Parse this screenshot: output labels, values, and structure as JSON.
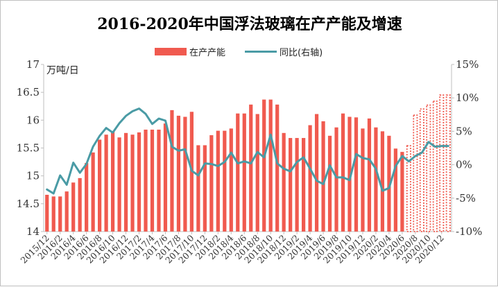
{
  "chart_data": {
    "type": "bar",
    "title": "2016-2020年中国浮法玻璃在产产能及增速",
    "y_unit_label": "万吨/日",
    "ylim": [
      14,
      17
    ],
    "yticks": [
      "14",
      "14.5",
      "15",
      "15.5",
      "16",
      "16.5",
      "17"
    ],
    "y2lim": [
      -10,
      15
    ],
    "y2ticks": [
      "-10%",
      "-5%",
      "0%",
      "5%",
      "10%",
      "15%"
    ],
    "legend_placement": "top-center",
    "x_tick_labels": [
      "2015/12",
      "2016/2",
      "2016/4",
      "2016/6",
      "2016/8",
      "2016/10",
      "2016/12",
      "2017/2",
      "2017/4",
      "2017/6",
      "2017/8",
      "2017/10",
      "2017/12",
      "2018/2",
      "2018/4",
      "2018/6",
      "2018/8",
      "2018/10",
      "2018/12",
      "2019/2",
      "2019/4",
      "2019/6",
      "2019/8",
      "2019/10",
      "2019/12",
      "2020/2",
      "2020/4",
      "2020/6",
      "2020/8",
      "2020/10",
      "2020/12"
    ],
    "x_tick_step": 2,
    "projected_from_index": 55,
    "colors": {
      "bar": "#F05A4F",
      "line": "#4A9BA5",
      "axis": "#bfbfbf"
    },
    "series": [
      {
        "name": "在产产能",
        "type": "bar",
        "axis": "left",
        "values": [
          14.66,
          14.63,
          14.63,
          14.72,
          14.88,
          14.96,
          15.23,
          15.42,
          15.65,
          15.74,
          15.8,
          15.69,
          15.77,
          15.74,
          15.78,
          15.83,
          15.83,
          15.83,
          15.94,
          16.18,
          16.08,
          16.06,
          16.15,
          15.55,
          15.55,
          15.73,
          15.81,
          15.81,
          15.85,
          16.12,
          16.12,
          16.28,
          16.11,
          16.37,
          16.37,
          16.28,
          15.77,
          15.68,
          15.68,
          15.68,
          15.91,
          16.11,
          15.98,
          15.72,
          15.87,
          16.12,
          16.06,
          16.05,
          15.85,
          16.03,
          15.87,
          15.8,
          15.72,
          15.49,
          15.43,
          15.54,
          16.09,
          16.2,
          16.27,
          16.34,
          16.45,
          16.45
        ]
      },
      {
        "name": "同比(右轴)",
        "type": "line",
        "axis": "right",
        "values": [
          -3.7,
          -4.3,
          -1.6,
          -3.0,
          0.3,
          -1.2,
          0.1,
          2.7,
          4.3,
          5.5,
          4.8,
          6.2,
          7.3,
          8.0,
          8.4,
          7.6,
          6.1,
          6.9,
          6.6,
          2.7,
          2.1,
          2.3,
          -0.9,
          -1.6,
          0.2,
          0.1,
          -0.2,
          0.4,
          1.8,
          0.2,
          0.5,
          0.2,
          1.9,
          1.1,
          4.5,
          0.2,
          -0.6,
          -1.0,
          0.4,
          1.1,
          -0.6,
          -2.4,
          -2.9,
          -0.1,
          -1.9,
          -1.9,
          -2.3,
          1.6,
          1.0,
          0.8,
          -0.6,
          -3.9,
          -3.5,
          -0.2,
          1.3,
          0.5,
          1.3,
          1.8,
          3.4,
          2.7,
          2.8,
          2.8
        ]
      }
    ]
  }
}
